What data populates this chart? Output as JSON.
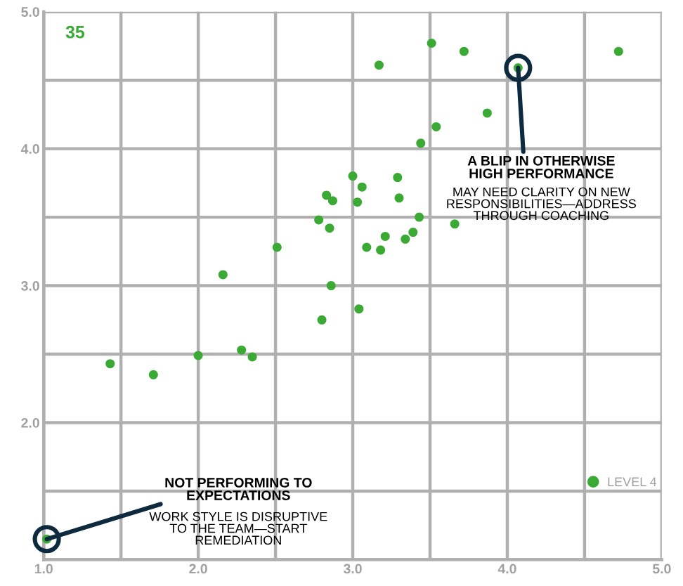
{
  "chart_data": {
    "type": "scatter",
    "xlim": [
      1.0,
      5.0
    ],
    "ylim": [
      1.0,
      5.0
    ],
    "xticks": [
      {
        "value": 1.0,
        "label": "1.0"
      },
      {
        "value": 1.5,
        "label": null
      },
      {
        "value": 2.0,
        "label": "2.0"
      },
      {
        "value": 2.5,
        "label": null
      },
      {
        "value": 3.0,
        "label": "3.0"
      },
      {
        "value": 3.5,
        "label": null
      },
      {
        "value": 4.0,
        "label": "4.0"
      },
      {
        "value": 4.5,
        "label": null
      },
      {
        "value": 5.0,
        "label": "5.0"
      }
    ],
    "yticks": [
      {
        "value": 1.0,
        "label": null
      },
      {
        "value": 1.5,
        "label": null
      },
      {
        "value": 2.0,
        "label": "2.0"
      },
      {
        "value": 2.5,
        "label": null
      },
      {
        "value": 3.0,
        "label": "3.0"
      },
      {
        "value": 3.5,
        "label": null
      },
      {
        "value": 4.0,
        "label": "4.0"
      },
      {
        "value": 4.5,
        "label": null
      },
      {
        "value": 5.0,
        "label": "5.0"
      }
    ],
    "grid": true,
    "legend": "bottom right",
    "marker": "circle",
    "series": [
      {
        "name": "LEVEL 4",
        "color": "#3aaa35",
        "x": [
          3.51,
          3.72,
          3.17,
          4.72,
          4.07,
          3.87,
          3.54,
          3.44,
          3.0,
          3.29,
          3.06,
          2.83,
          2.87,
          3.03,
          3.3,
          2.78,
          3.43,
          2.85,
          3.66,
          3.39,
          3.34,
          3.21,
          3.09,
          3.18,
          2.51,
          2.16,
          2.86,
          3.04,
          2.8,
          2.28,
          2.35,
          2.0,
          1.43,
          1.71,
          1.02
        ],
        "values": [
          4.77,
          4.71,
          4.61,
          4.71,
          4.59,
          4.26,
          4.16,
          4.04,
          3.8,
          3.79,
          3.72,
          3.66,
          3.62,
          3.61,
          3.64,
          3.48,
          3.5,
          3.42,
          3.45,
          3.39,
          3.34,
          3.36,
          3.28,
          3.26,
          3.28,
          3.08,
          3.0,
          2.83,
          2.75,
          2.53,
          2.48,
          2.49,
          2.43,
          2.35,
          1.15
        ]
      }
    ],
    "annotations": [
      "35",
      {
        "text": "A BLIP IN OTHERWISE\nHIGH PERFORMANCE",
        "x": 4.07,
        "y": 4.59
      },
      "MAY NEED CLARITY ON NEW\nRESPONSIBILITIES—ADDRESS\nTHROUGH COACHING",
      {
        "text": "NOT PERFORMING TO\nEXPECTATIONS",
        "x": 1.02,
        "y": 1.15
      },
      "WORK STYLE IS DISRUPTIVE\nTO THE TEAM—START\nREMEDIATION"
    ]
  }
}
